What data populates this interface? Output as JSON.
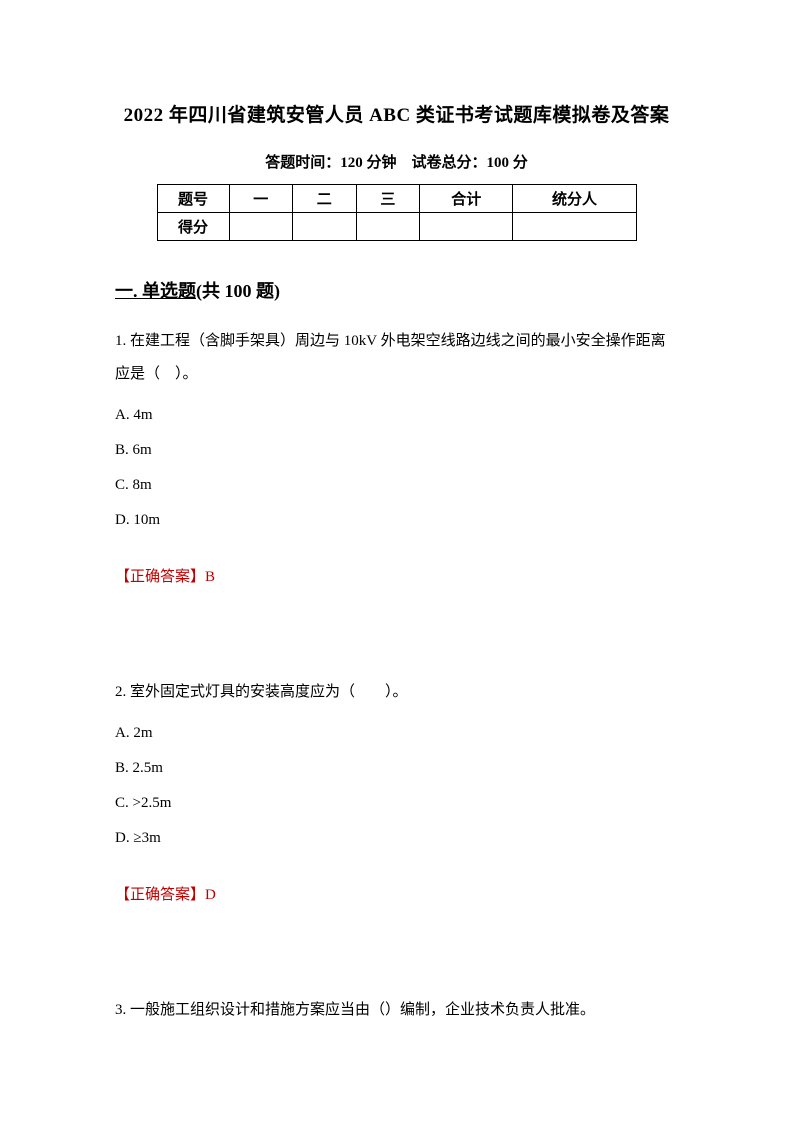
{
  "title": "2022 年四川省建筑安管人员 ABC 类证书考试题库模拟卷及答案",
  "subtitle": "答题时间：120 分钟 试卷总分：100 分",
  "score_table": {
    "headers": [
      "题号",
      "一",
      "二",
      "三",
      "合计",
      "统分人"
    ],
    "row_label": "得分"
  },
  "section_heading_prefix": "一. 单选题",
  "section_heading_suffix": "(共 100 题)",
  "questions": [
    {
      "text": "1. 在建工程（含脚手架具）周边与 10kV 外电架空线路边线之间的最小安全操作距离应是（ ）。",
      "options": [
        "A. 4m",
        "B. 6m",
        "C. 8m",
        "D. 10m"
      ],
      "answer": "【正确答案】B"
    },
    {
      "text": "2. 室外固定式灯具的安装高度应为（  ）。",
      "options": [
        "A. 2m",
        "B. 2.5m",
        "C. >2.5m",
        "D. ≥3m"
      ],
      "answer": "【正确答案】D"
    },
    {
      "text": "3. 一般施工组织设计和措施方案应当由（）编制，企业技术负责人批准。"
    }
  ],
  "colors": {
    "text": "#000000",
    "answer": "#c00000",
    "background": "#ffffff"
  },
  "fonts": {
    "title_size": 19,
    "subtitle_size": 15,
    "section_size": 18,
    "body_size": 15
  }
}
